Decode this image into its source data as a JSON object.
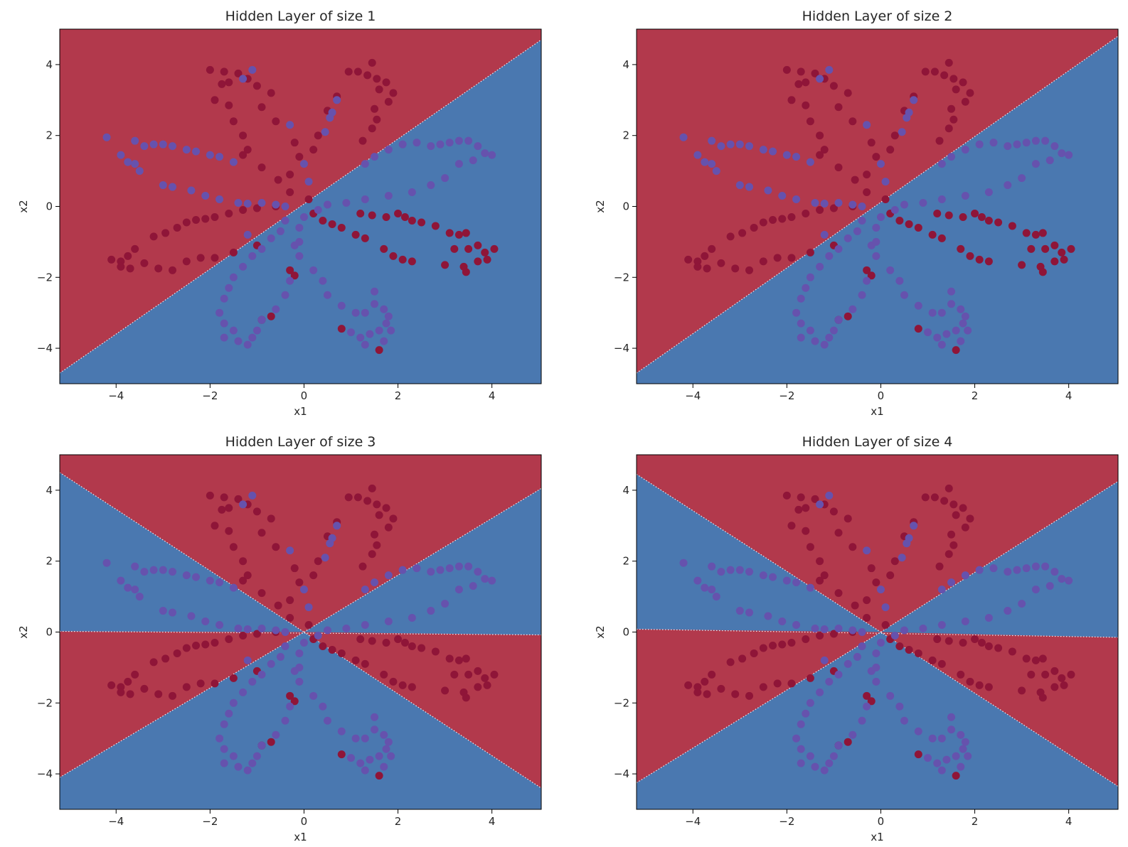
{
  "colors": {
    "red_region": "#b2394c",
    "blue_region": "#4a78b0",
    "red_point": "#8f1538",
    "blue_point": "#6652ad",
    "boundary": "#ffffff"
  },
  "chart_data": [
    {
      "type": "scatter",
      "title": "Hidden Layer of size 1",
      "xlabel": "x1",
      "ylabel": "x2",
      "xlim": [
        -5.2,
        5.05
      ],
      "ylim": [
        -5.0,
        5.0
      ],
      "xticks": [
        -4,
        -2,
        0,
        2,
        4
      ],
      "yticks": [
        -4,
        -2,
        0,
        2,
        4
      ],
      "xtick_labels": [
        "−4",
        "−2",
        "0",
        "2",
        "4"
      ],
      "ytick_labels": [
        "−4",
        "−2",
        "0",
        "2",
        "4"
      ],
      "boundaries": [
        [
          [
            -5.2,
            -4.7
          ],
          [
            5.05,
            4.7
          ]
        ]
      ],
      "red_regions": [
        [
          [
            -5.2,
            -4.7
          ],
          [
            5.05,
            4.7
          ],
          [
            5.05,
            5.0
          ],
          [
            -5.2,
            5.0
          ]
        ]
      ]
    },
    {
      "type": "scatter",
      "title": "Hidden Layer of size 2",
      "xlabel": "x1",
      "ylabel": "x2",
      "xlim": [
        -5.2,
        5.05
      ],
      "ylim": [
        -5.0,
        5.0
      ],
      "xticks": [
        -4,
        -2,
        0,
        2,
        4
      ],
      "yticks": [
        -4,
        -2,
        0,
        2,
        4
      ],
      "xtick_labels": [
        "−4",
        "−2",
        "0",
        "2",
        "4"
      ],
      "ytick_labels": [
        "−4",
        "−2",
        "0",
        "2",
        "4"
      ],
      "boundaries": [
        [
          [
            -5.2,
            -4.7
          ],
          [
            5.05,
            4.8
          ]
        ]
      ],
      "red_regions": [
        [
          [
            -5.2,
            -4.7
          ],
          [
            5.05,
            4.8
          ],
          [
            5.05,
            5.0
          ],
          [
            -5.2,
            5.0
          ]
        ]
      ]
    },
    {
      "type": "scatter",
      "title": "Hidden Layer of size 3",
      "xlabel": "x1",
      "ylabel": "x2",
      "xlim": [
        -5.2,
        5.05
      ],
      "ylim": [
        -5.0,
        5.0
      ],
      "xticks": [
        -4,
        -2,
        0,
        2,
        4
      ],
      "yticks": [
        -4,
        -2,
        0,
        2,
        4
      ],
      "xtick_labels": [
        "−4",
        "−2",
        "0",
        "2",
        "4"
      ],
      "ytick_labels": [
        "−4",
        "−2",
        "0",
        "2",
        "4"
      ],
      "boundaries": [
        [
          [
            -5.2,
            4.5
          ],
          [
            0,
            0
          ]
        ],
        [
          [
            0,
            0
          ],
          [
            5.05,
            4.05
          ]
        ],
        [
          [
            -5.2,
            -4.1
          ],
          [
            0,
            0
          ]
        ],
        [
          [
            0,
            0
          ],
          [
            5.05,
            -4.4
          ]
        ],
        [
          [
            -5.2,
            0.02
          ],
          [
            5.05,
            -0.08
          ]
        ]
      ],
      "red_regions": [
        [
          [
            -5.2,
            5.0
          ],
          [
            -5.2,
            4.5
          ],
          [
            0,
            0
          ],
          [
            5.05,
            4.05
          ],
          [
            5.05,
            5.0
          ]
        ],
        [
          [
            -5.2,
            0.02
          ],
          [
            0,
            0
          ],
          [
            -5.2,
            -4.1
          ]
        ],
        [
          [
            0,
            0
          ],
          [
            5.05,
            -0.08
          ],
          [
            5.05,
            -4.4
          ]
        ]
      ]
    },
    {
      "type": "scatter",
      "title": "Hidden Layer of size 4",
      "xlabel": "x1",
      "ylabel": "x2",
      "xlim": [
        -5.2,
        5.05
      ],
      "ylim": [
        -5.0,
        5.0
      ],
      "xticks": [
        -4,
        -2,
        0,
        2,
        4
      ],
      "yticks": [
        -4,
        -2,
        0,
        2,
        4
      ],
      "xtick_labels": [
        "−4",
        "−2",
        "0",
        "2",
        "4"
      ],
      "ytick_labels": [
        "−4",
        "−2",
        "0",
        "2",
        "4"
      ],
      "boundaries": [
        [
          [
            -5.2,
            4.45
          ],
          [
            0,
            0
          ]
        ],
        [
          [
            0,
            0
          ],
          [
            5.05,
            4.25
          ]
        ],
        [
          [
            -5.2,
            -4.25
          ],
          [
            0,
            0
          ]
        ],
        [
          [
            0,
            0
          ],
          [
            5.05,
            -4.35
          ]
        ],
        [
          [
            -5.2,
            0.08
          ],
          [
            5.05,
            -0.15
          ]
        ]
      ],
      "red_regions": [
        [
          [
            -5.2,
            5.0
          ],
          [
            -5.2,
            4.45
          ],
          [
            0,
            0
          ],
          [
            5.05,
            4.25
          ],
          [
            5.05,
            5.0
          ]
        ],
        [
          [
            -5.2,
            0.08
          ],
          [
            0,
            0
          ],
          [
            -5.2,
            -4.25
          ]
        ],
        [
          [
            0,
            0
          ],
          [
            5.05,
            -0.15
          ],
          [
            5.05,
            -4.35
          ]
        ]
      ]
    }
  ],
  "points": {
    "red": [
      [
        -2.0,
        3.85
      ],
      [
        -1.7,
        3.8
      ],
      [
        -1.4,
        3.75
      ],
      [
        -1.6,
        3.5
      ],
      [
        -1.75,
        3.45
      ],
      [
        -1.2,
        3.6
      ],
      [
        -1.0,
        3.4
      ],
      [
        -1.9,
        3.0
      ],
      [
        -1.6,
        2.85
      ],
      [
        -0.7,
        3.2
      ],
      [
        -1.5,
        2.4
      ],
      [
        -1.3,
        2.0
      ],
      [
        -0.9,
        2.8
      ],
      [
        -0.6,
        2.4
      ],
      [
        -1.2,
        1.6
      ],
      [
        -0.2,
        1.8
      ],
      [
        -0.1,
        1.4
      ],
      [
        -0.3,
        0.9
      ],
      [
        0.7,
        3.1
      ],
      [
        0.5,
        2.7
      ],
      [
        0.3,
        2.0
      ],
      [
        0.2,
        1.6
      ],
      [
        0.95,
        3.8
      ],
      [
        1.15,
        3.8
      ],
      [
        1.35,
        3.7
      ],
      [
        1.45,
        4.05
      ],
      [
        1.55,
        3.6
      ],
      [
        1.6,
        3.3
      ],
      [
        1.75,
        3.5
      ],
      [
        1.9,
        3.2
      ],
      [
        1.8,
        2.95
      ],
      [
        1.5,
        2.75
      ],
      [
        1.55,
        2.45
      ],
      [
        1.45,
        2.2
      ],
      [
        1.25,
        1.85
      ],
      [
        -1.3,
        1.45
      ],
      [
        -0.9,
        1.1
      ],
      [
        -0.55,
        0.75
      ],
      [
        -0.3,
        0.4
      ],
      [
        0.1,
        0.2
      ],
      [
        -4.1,
        -1.5
      ],
      [
        -3.9,
        -1.55
      ],
      [
        -3.75,
        -1.4
      ],
      [
        -3.6,
        -1.2
      ],
      [
        -3.9,
        -1.7
      ],
      [
        -3.7,
        -1.75
      ],
      [
        -3.4,
        -1.6
      ],
      [
        -3.1,
        -1.75
      ],
      [
        -2.8,
        -1.8
      ],
      [
        -3.2,
        -0.85
      ],
      [
        -2.95,
        -0.75
      ],
      [
        -2.7,
        -0.6
      ],
      [
        -2.5,
        -0.45
      ],
      [
        -2.3,
        -0.38
      ],
      [
        -2.1,
        -0.35
      ],
      [
        -1.9,
        -0.3
      ],
      [
        -1.6,
        -0.2
      ],
      [
        -1.3,
        -0.1
      ],
      [
        -1.0,
        -0.05
      ],
      [
        -0.6,
        0.0
      ],
      [
        -2.5,
        -1.55
      ],
      [
        -2.2,
        -1.45
      ],
      [
        -1.9,
        -1.45
      ],
      [
        -1.5,
        -1.3
      ],
      [
        -1.0,
        -1.1
      ],
      [
        0.2,
        -0.2
      ],
      [
        0.4,
        -0.4
      ],
      [
        0.6,
        -0.5
      ],
      [
        0.8,
        -0.6
      ],
      [
        1.1,
        -0.8
      ],
      [
        1.3,
        -0.9
      ],
      [
        1.7,
        -1.2
      ],
      [
        1.9,
        -1.4
      ],
      [
        2.1,
        -1.5
      ],
      [
        2.3,
        -1.55
      ],
      [
        1.2,
        -0.2
      ],
      [
        1.45,
        -0.25
      ],
      [
        1.75,
        -0.3
      ],
      [
        2.0,
        -0.2
      ],
      [
        2.15,
        -0.3
      ],
      [
        2.3,
        -0.4
      ],
      [
        2.5,
        -0.45
      ],
      [
        2.8,
        -0.55
      ],
      [
        3.1,
        -0.75
      ],
      [
        3.3,
        -0.8
      ],
      [
        3.45,
        -0.75
      ],
      [
        3.2,
        -1.2
      ],
      [
        3.5,
        -1.2
      ],
      [
        3.7,
        -1.1
      ],
      [
        3.85,
        -1.3
      ],
      [
        4.05,
        -1.2
      ],
      [
        3.9,
        -1.5
      ],
      [
        3.7,
        -1.55
      ],
      [
        3.4,
        -1.7
      ],
      [
        3.45,
        -1.85
      ],
      [
        3.0,
        -1.65
      ],
      [
        -0.3,
        -1.8
      ],
      [
        -0.2,
        -1.95
      ],
      [
        -0.7,
        -3.1
      ],
      [
        -0.9,
        -3.2
      ],
      [
        0.8,
        -3.45
      ],
      [
        1.6,
        -4.05
      ]
    ],
    "blue": [
      [
        -4.2,
        1.95
      ],
      [
        -3.9,
        1.45
      ],
      [
        -3.75,
        1.25
      ],
      [
        -3.6,
        1.2
      ],
      [
        -3.5,
        1.0
      ],
      [
        -3.6,
        1.85
      ],
      [
        -3.4,
        1.7
      ],
      [
        -3.2,
        1.75
      ],
      [
        -3.0,
        1.75
      ],
      [
        -2.8,
        1.7
      ],
      [
        -2.5,
        1.6
      ],
      [
        -2.3,
        1.55
      ],
      [
        -2.0,
        1.45
      ],
      [
        -1.8,
        1.4
      ],
      [
        -1.5,
        1.25
      ],
      [
        -3.0,
        0.6
      ],
      [
        -2.8,
        0.55
      ],
      [
        -2.4,
        0.45
      ],
      [
        -2.1,
        0.3
      ],
      [
        -1.8,
        0.2
      ],
      [
        -1.4,
        0.1
      ],
      [
        -1.2,
        0.08
      ],
      [
        -0.9,
        0.1
      ],
      [
        -0.6,
        0.05
      ],
      [
        -0.4,
        0.0
      ],
      [
        -1.1,
        3.85
      ],
      [
        -1.3,
        3.6
      ],
      [
        -0.3,
        2.3
      ],
      [
        0.0,
        1.2
      ],
      [
        0.1,
        0.7
      ],
      [
        0.55,
        2.5
      ],
      [
        0.45,
        2.1
      ],
      [
        0.6,
        2.65
      ],
      [
        0.7,
        3.0
      ],
      [
        1.3,
        1.2
      ],
      [
        1.5,
        1.4
      ],
      [
        1.8,
        1.6
      ],
      [
        2.1,
        1.75
      ],
      [
        2.4,
        1.8
      ],
      [
        2.7,
        1.7
      ],
      [
        2.9,
        1.75
      ],
      [
        3.1,
        1.8
      ],
      [
        3.3,
        1.85
      ],
      [
        3.5,
        1.85
      ],
      [
        3.7,
        1.7
      ],
      [
        3.85,
        1.5
      ],
      [
        4.0,
        1.45
      ],
      [
        3.6,
        1.3
      ],
      [
        3.3,
        1.2
      ],
      [
        3.0,
        0.8
      ],
      [
        2.7,
        0.6
      ],
      [
        2.3,
        0.4
      ],
      [
        1.8,
        0.3
      ],
      [
        1.3,
        0.2
      ],
      [
        0.9,
        0.1
      ],
      [
        0.5,
        0.05
      ],
      [
        0.3,
        -0.1
      ],
      [
        0.0,
        -0.3
      ],
      [
        -0.1,
        -0.6
      ],
      [
        -0.1,
        -1.0
      ],
      [
        -0.1,
        -1.4
      ],
      [
        -0.2,
        -1.1
      ],
      [
        0.2,
        -1.8
      ],
      [
        0.4,
        -2.1
      ],
      [
        0.5,
        -2.5
      ],
      [
        0.8,
        -2.8
      ],
      [
        1.1,
        -3.0
      ],
      [
        1.3,
        -3.0
      ],
      [
        1.5,
        -2.4
      ],
      [
        1.5,
        -2.75
      ],
      [
        1.7,
        -2.9
      ],
      [
        1.8,
        -3.1
      ],
      [
        1.75,
        -3.3
      ],
      [
        1.6,
        -3.5
      ],
      [
        1.4,
        -3.6
      ],
      [
        1.2,
        -3.7
      ],
      [
        1.0,
        -3.55
      ],
      [
        1.3,
        -3.9
      ],
      [
        1.7,
        -3.8
      ],
      [
        1.85,
        -3.5
      ],
      [
        -0.4,
        -0.4
      ],
      [
        -0.5,
        -0.7
      ],
      [
        -0.7,
        -0.9
      ],
      [
        -0.9,
        -1.2
      ],
      [
        -1.1,
        -1.4
      ],
      [
        -1.3,
        -1.7
      ],
      [
        -1.5,
        -2.0
      ],
      [
        -1.6,
        -2.3
      ],
      [
        -1.7,
        -2.6
      ],
      [
        -1.8,
        -3.0
      ],
      [
        -1.7,
        -3.3
      ],
      [
        -1.7,
        -3.7
      ],
      [
        -1.5,
        -3.5
      ],
      [
        -1.4,
        -3.8
      ],
      [
        -1.2,
        -3.9
      ],
      [
        -1.1,
        -3.7
      ],
      [
        -1.0,
        -3.5
      ],
      [
        -0.9,
        -3.2
      ],
      [
        -0.6,
        -2.9
      ],
      [
        -0.4,
        -2.5
      ],
      [
        -0.3,
        -2.1
      ],
      [
        -1.2,
        -0.8
      ]
    ]
  }
}
